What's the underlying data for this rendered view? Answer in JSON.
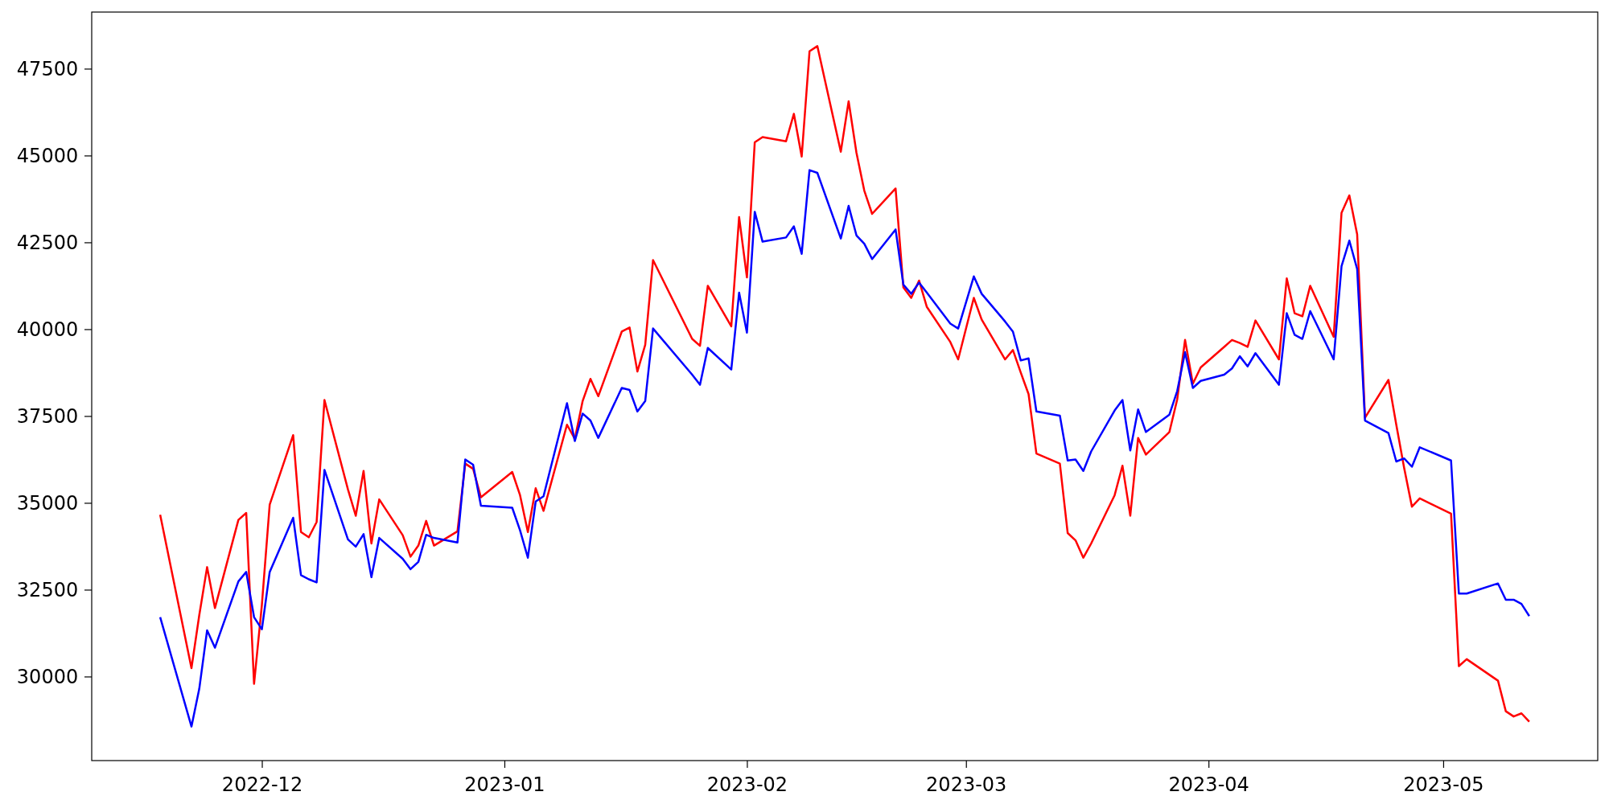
{
  "chart_data": {
    "type": "line",
    "x": [
      "2022-11-18",
      "2022-11-22",
      "2022-11-23",
      "2022-11-24",
      "2022-11-25",
      "2022-11-28",
      "2022-11-29",
      "2022-11-30",
      "2022-12-01",
      "2022-12-02",
      "2022-12-05",
      "2022-12-06",
      "2022-12-07",
      "2022-12-08",
      "2022-12-09",
      "2022-12-12",
      "2022-12-13",
      "2022-12-14",
      "2022-12-15",
      "2022-12-16",
      "2022-12-19",
      "2022-12-20",
      "2022-12-21",
      "2022-12-22",
      "2022-12-23",
      "2022-12-26",
      "2022-12-27",
      "2022-12-28",
      "2022-12-29",
      "2023-01-02",
      "2023-01-03",
      "2023-01-04",
      "2023-01-05",
      "2023-01-06",
      "2023-01-09",
      "2023-01-10",
      "2023-01-11",
      "2023-01-12",
      "2023-01-13",
      "2023-01-16",
      "2023-01-17",
      "2023-01-18",
      "2023-01-19",
      "2023-01-20",
      "2023-01-25",
      "2023-01-26",
      "2023-01-27",
      "2023-01-30",
      "2023-01-31",
      "2023-02-01",
      "2023-02-02",
      "2023-02-03",
      "2023-02-06",
      "2023-02-07",
      "2023-02-08",
      "2023-02-09",
      "2023-02-10",
      "2023-02-13",
      "2023-02-14",
      "2023-02-15",
      "2023-02-16",
      "2023-02-17",
      "2023-02-20",
      "2023-02-21",
      "2023-02-22",
      "2023-02-23",
      "2023-02-24",
      "2023-02-27",
      "2023-02-28",
      "2023-03-02",
      "2023-03-03",
      "2023-03-06",
      "2023-03-07",
      "2023-03-08",
      "2023-03-09",
      "2023-03-10",
      "2023-03-13",
      "2023-03-14",
      "2023-03-15",
      "2023-03-16",
      "2023-03-17",
      "2023-03-20",
      "2023-03-21",
      "2023-03-22",
      "2023-03-23",
      "2023-03-24",
      "2023-03-27",
      "2023-03-28",
      "2023-03-29",
      "2023-03-30",
      "2023-03-31",
      "2023-04-03",
      "2023-04-04",
      "2023-04-05",
      "2023-04-06",
      "2023-04-07",
      "2023-04-10",
      "2023-04-11",
      "2023-04-12",
      "2023-04-13",
      "2023-04-14",
      "2023-04-17",
      "2023-04-18",
      "2023-04-19",
      "2023-04-20",
      "2023-04-21",
      "2023-04-24",
      "2023-04-25",
      "2023-04-26",
      "2023-04-27",
      "2023-04-28",
      "2023-05-02",
      "2023-05-03",
      "2023-05-04",
      "2023-05-08",
      "2023-05-09",
      "2023-05-10",
      "2023-05-11",
      "2023-05-12"
    ],
    "series": [
      {
        "color": "#ff0000",
        "values": [
          34660,
          30240,
          31770,
          33150,
          31970,
          34510,
          34710,
          29790,
          32060,
          34950,
          36950,
          34160,
          34010,
          34450,
          37960,
          35390,
          34630,
          35920,
          33830,
          35100,
          34070,
          33450,
          33770,
          34480,
          33770,
          34180,
          36130,
          35980,
          35160,
          35890,
          35220,
          34160,
          35420,
          34770,
          37250,
          36840,
          37930,
          38570,
          38070,
          39930,
          40050,
          38780,
          39550,
          41990,
          39720,
          39520,
          41250,
          40080,
          43230,
          41490,
          45380,
          45530,
          45410,
          46200,
          44970,
          48000,
          48150,
          45110,
          46560,
          45080,
          43990,
          43320,
          44050,
          41200,
          40900,
          41400,
          40640,
          39630,
          39130,
          40900,
          40280,
          39130,
          39400,
          38750,
          38130,
          36420,
          36130,
          34130,
          33920,
          33420,
          33830,
          35220,
          36070,
          34630,
          36870,
          36390,
          37040,
          37980,
          39690,
          38430,
          38900,
          39490,
          39690,
          39600,
          39490,
          40250,
          39130,
          41460,
          40460,
          40370,
          41250,
          39780,
          43350,
          43850,
          42730,
          37450,
          38540,
          37250,
          36010,
          34890,
          35130,
          34690,
          30300,
          30500,
          29880,
          29000,
          28850,
          28940,
          28700
        ]
      },
      {
        "color": "#0000ff",
        "values": [
          31710,
          28560,
          29650,
          31330,
          30830,
          32740,
          33010,
          31710,
          31360,
          33010,
          34570,
          32920,
          32800,
          32710,
          35950,
          33950,
          33740,
          34100,
          32860,
          33990,
          33390,
          33090,
          33300,
          34080,
          33990,
          33860,
          36250,
          36100,
          34920,
          34860,
          34210,
          33420,
          35040,
          35190,
          37870,
          36780,
          37570,
          37370,
          36870,
          38310,
          38250,
          37630,
          37930,
          40020,
          38690,
          38400,
          39460,
          38840,
          41050,
          39900,
          43380,
          42520,
          42640,
          42960,
          42170,
          44580,
          44500,
          42610,
          43550,
          42700,
          42460,
          42020,
          42870,
          41280,
          41020,
          41340,
          41050,
          40160,
          40020,
          41520,
          41020,
          40220,
          39930,
          39100,
          39160,
          37630,
          37510,
          36220,
          36250,
          35920,
          36480,
          37660,
          37960,
          36510,
          37690,
          37040,
          37540,
          38220,
          39340,
          38310,
          38510,
          38690,
          38870,
          39220,
          38930,
          39310,
          38400,
          40460,
          39840,
          39720,
          40520,
          39130,
          41810,
          42550,
          41730,
          37370,
          37010,
          36190,
          36280,
          36040,
          36600,
          36220,
          32390,
          32390,
          32680,
          32210,
          32210,
          32090,
          31740
        ]
      }
    ],
    "xlim": [
      "2022-11-09T06:00",
      "2023-05-20T18:00"
    ],
    "ylim": [
      27580,
      49130
    ],
    "xticks": [
      {
        "value": "2022-12-01",
        "label": "2022-12"
      },
      {
        "value": "2023-01-01",
        "label": "2023-01"
      },
      {
        "value": "2023-02-01",
        "label": "2023-02"
      },
      {
        "value": "2023-03-01",
        "label": "2023-03"
      },
      {
        "value": "2023-04-01",
        "label": "2023-04"
      },
      {
        "value": "2023-05-01",
        "label": "2023-05"
      }
    ],
    "yticks": [
      30000,
      32500,
      35000,
      37500,
      40000,
      42500,
      45000,
      47500
    ]
  }
}
